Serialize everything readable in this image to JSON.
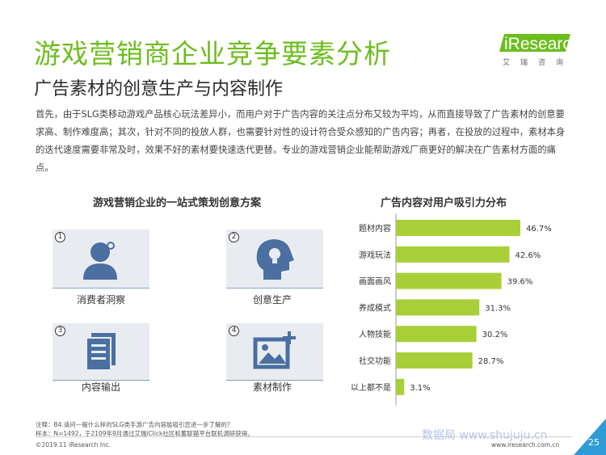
{
  "page": {
    "title": "游戏营销商企业竞争要素分析",
    "subtitle": "广告素材的创意生产与内容制作",
    "intro": "首先，由于SLG类移动游戏产品核心玩法差异小，而用户对于广告内容的关注点分布又较为平均，从而直接导致了广告素材的创意要求高、制作难度高；其次，针对不同的投放人群，也需要针对性的设计符合受众感知的广告内容；再者，在投放的过程中，素材本身的迭代速度需要非常及时，效果不好的素材要快速迭代更替。专业的游戏营销企业能帮助游戏厂商更好的解决在广告素材方面的痛点。",
    "page_number": "25"
  },
  "logo": {
    "brand": "iResearch",
    "cn": "艾瑞咨询"
  },
  "left_panel": {
    "title": "游戏营销企业的一站式策划创意方案",
    "items": [
      {
        "num": "1",
        "label": "消费者洞察",
        "icon": "user-icon"
      },
      {
        "num": "2",
        "label": "创意生产",
        "icon": "idea-head-icon"
      },
      {
        "num": "3",
        "label": "内容输出",
        "icon": "documents-icon"
      },
      {
        "num": "4",
        "label": "素材制作",
        "icon": "image-add-icon"
      }
    ]
  },
  "chart_data": {
    "type": "bar",
    "orientation": "horizontal",
    "title": "广告内容对用户吸引力分布",
    "categories": [
      "题材内容",
      "游戏玩法",
      "画面画风",
      "养成模式",
      "人物技能",
      "社交功能",
      "以上都不是"
    ],
    "values": [
      46.7,
      42.6,
      39.6,
      31.3,
      30.2,
      28.7,
      3.1
    ],
    "value_labels": [
      "46.7%",
      "42.6%",
      "39.6%",
      "31.3%",
      "30.2%",
      "28.7%",
      "3.1%"
    ],
    "xlim": [
      0,
      50
    ],
    "color": "#a8cf38",
    "grid": false
  },
  "footer": {
    "note1": "注释：B4.请问一般什么样的SLG类手游广告内容能吸引您进一步了解的？",
    "note2": "样本：N=1492，于2109年9月通过艾瑞iClick社区和蓄联猫平台联机调研获得。",
    "copyright": "©2019.11 iResearch Inc.",
    "site": "www.iresearch.com.cn",
    "watermark": "数据局 www.shujuju.cn"
  },
  "colors": {
    "accent": "#6dbd1e",
    "tile_bg": "#e8ecf1",
    "icon": "#4a6fa0",
    "bar": "#a8cf38",
    "corner": "#2f9bd6"
  }
}
